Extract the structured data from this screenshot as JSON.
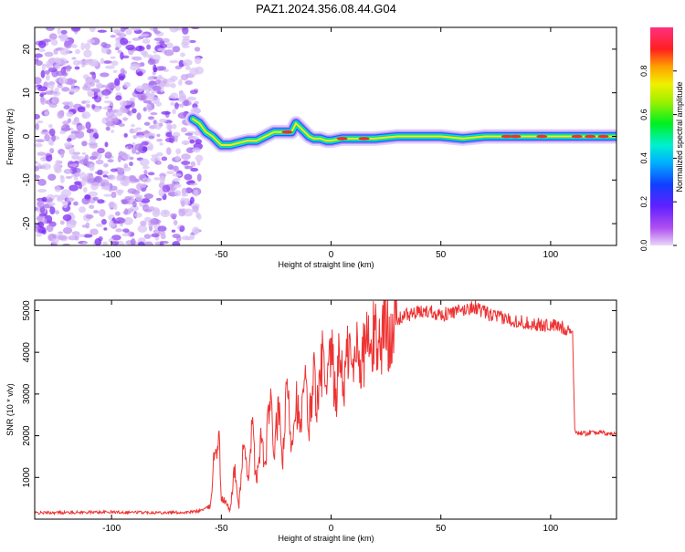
{
  "title": "PAZ1.2024.356.08.44.G04",
  "chart_data": [
    {
      "type": "heatmap",
      "title": "PAZ1.2024.356.08.44.G04",
      "xlabel": "Height of straight line (km)",
      "ylabel": "Frequency (Hz)",
      "xlim": [
        -135,
        130
      ],
      "ylim": [
        -25,
        25
      ],
      "xticks": [
        -100,
        -50,
        0,
        50,
        100
      ],
      "yticks": [
        -20,
        -10,
        0,
        10,
        20
      ],
      "colorbar": {
        "label": "Normalized spectral amplitude",
        "range": [
          0,
          1
        ],
        "ticks": [
          "0.0",
          "0.2",
          "0.4",
          "0.6",
          "0.8"
        ],
        "colormap": "rainbow (magenta-purple-blue-cyan-green-yellow-red-pink)"
      },
      "ridge": {
        "x": [
          -63,
          -60,
          -57,
          -54,
          -50,
          -46,
          -42,
          -38,
          -34,
          -30,
          -26,
          -22,
          -18,
          -16,
          -14,
          -12,
          -10,
          -8,
          -5,
          -2,
          0,
          5,
          10,
          15,
          20,
          30,
          40,
          50,
          60,
          70,
          80,
          90,
          100,
          110,
          120,
          130
        ],
        "y": [
          4,
          3,
          1,
          0,
          -2,
          -2,
          -1.5,
          -1,
          -1,
          0,
          1,
          1,
          1,
          3,
          2,
          1,
          0,
          -0.5,
          -0.5,
          -1,
          -1,
          -0.5,
          -0.5,
          -0.5,
          -0.5,
          0,
          0,
          0,
          -0.5,
          0,
          0,
          0,
          0,
          0,
          0,
          0
        ]
      }
    },
    {
      "type": "line",
      "xlabel": "Height of straight line (km)",
      "ylabel": "SNR (10 * v/v)",
      "xlim": [
        -135,
        130
      ],
      "ylim": [
        0,
        5250
      ],
      "xticks": [
        -100,
        -50,
        0,
        50,
        100
      ],
      "yticks": [
        1000,
        2000,
        3000,
        4000,
        5000
      ],
      "color": "#ee3333",
      "x": [
        -135,
        -120,
        -100,
        -80,
        -65,
        -60,
        -55,
        -53,
        -51,
        -50,
        -48,
        -46,
        -44,
        -42,
        -40,
        -38,
        -36,
        -34,
        -32,
        -30,
        -28,
        -26,
        -24,
        -22,
        -20,
        -18,
        -16,
        -14,
        -12,
        -10,
        -8,
        -6,
        -4,
        -2,
        0,
        2,
        4,
        6,
        8,
        10,
        12,
        14,
        16,
        18,
        20,
        22,
        24,
        26,
        28,
        30,
        32,
        35,
        40,
        45,
        50,
        55,
        60,
        65,
        70,
        75,
        80,
        85,
        90,
        95,
        100,
        105,
        108,
        110,
        111,
        115,
        120,
        125,
        130
      ],
      "y": [
        150,
        160,
        170,
        160,
        160,
        200,
        300,
        1700,
        1900,
        500,
        400,
        200,
        1200,
        300,
        1800,
        900,
        2300,
        800,
        2000,
        1200,
        3000,
        1600,
        2600,
        1400,
        3200,
        1800,
        3000,
        2000,
        3300,
        2200,
        3600,
        2600,
        3900,
        2800,
        4100,
        2800,
        4000,
        3200,
        4200,
        3400,
        4400,
        3600,
        4500,
        3800,
        4600,
        4100,
        4700,
        4400,
        4800,
        4700,
        4850,
        4900,
        4950,
        5000,
        4900,
        4950,
        5000,
        5100,
        4950,
        4850,
        4800,
        4750,
        4700,
        4650,
        4650,
        4600,
        4550,
        4500,
        2100,
        2050,
        2100,
        2050,
        2050
      ]
    }
  ]
}
